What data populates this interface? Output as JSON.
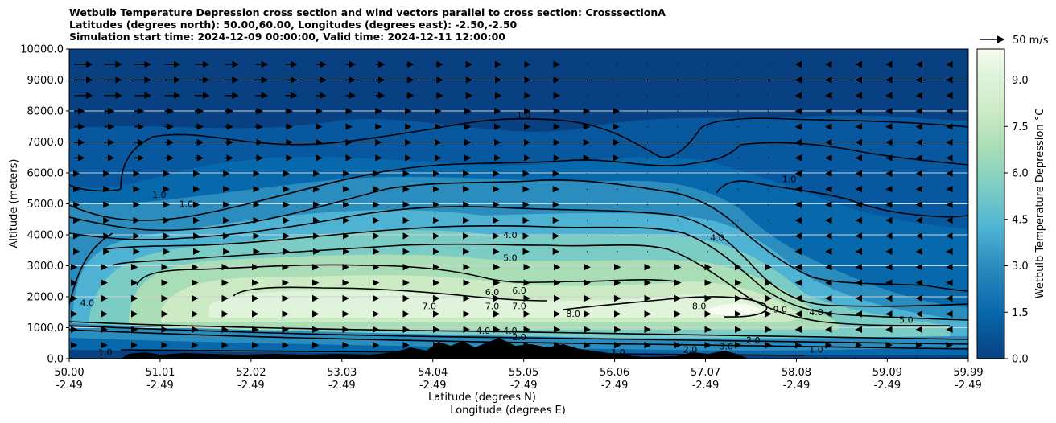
{
  "title_lines": [
    "Wetbulb Temperature Depression cross section and wind vectors parallel to cross section: CrosssectionA",
    "Latitudes (degrees north): 50.00,60.00, Longitudes (degrees east): -2.50,-2.50",
    "Simulation start time: 2024-12-09 00:00:00, Valid time: 2024-12-11 12:00:00"
  ],
  "chart_data": {
    "type": "heatmap",
    "title": "Wetbulb Temperature Depression cross section and wind vectors parallel to cross section: CrosssectionA",
    "ylabel": "Altitude (meters)",
    "xlabel": "Latitude (degrees N)",
    "xlabel2": "Longitude (degrees E)",
    "ylim": [
      0,
      10000
    ],
    "xlim": [
      50.0,
      59.99
    ],
    "yticks": [
      "0.0",
      "1000.0",
      "2000.0",
      "3000.0",
      "4000.0",
      "5000.0",
      "6000.0",
      "7000.0",
      "8000.0",
      "9000.0",
      "10000.0"
    ],
    "xticks_lat": [
      "50.00",
      "51.01",
      "52.02",
      "53.03",
      "54.04",
      "55.05",
      "56.06",
      "57.07",
      "58.08",
      "59.09",
      "59.99"
    ],
    "xticks_lon": [
      "-2.49",
      "-2.49",
      "-2.49",
      "-2.49",
      "-2.49",
      "-2.49",
      "-2.49",
      "-2.49",
      "-2.49",
      "-2.49",
      "-2.49"
    ],
    "colorbar": {
      "label": "Wetbulb Temperature Depression °C",
      "range": [
        0.0,
        10.0
      ],
      "ticks": [
        "0.0",
        "1.5",
        "3.0",
        "4.5",
        "6.0",
        "7.5",
        "9.0"
      ]
    },
    "quiver_key": "50 m/s",
    "contour_labels": [
      {
        "text": "1.0",
        "lat": 55.05,
        "alt": 7750
      },
      {
        "text": "1.0",
        "lat": 58.0,
        "alt": 5700
      },
      {
        "text": "1.0",
        "lat": 51.0,
        "alt": 5200
      },
      {
        "text": "1.0",
        "lat": 51.3,
        "alt": 4900
      },
      {
        "text": "4.0",
        "lat": 54.9,
        "alt": 3900
      },
      {
        "text": "4.0",
        "lat": 57.2,
        "alt": 3800
      },
      {
        "text": "5.0",
        "lat": 54.9,
        "alt": 3150
      },
      {
        "text": "6.0",
        "lat": 54.7,
        "alt": 2050
      },
      {
        "text": "6.0",
        "lat": 55.0,
        "alt": 2100
      },
      {
        "text": "7.0",
        "lat": 54.0,
        "alt": 1600
      },
      {
        "text": "7.0",
        "lat": 54.7,
        "alt": 1600
      },
      {
        "text": "7.0",
        "lat": 55.0,
        "alt": 1600
      },
      {
        "text": "8.0",
        "lat": 55.6,
        "alt": 1350
      },
      {
        "text": "8.0",
        "lat": 57.0,
        "alt": 1600
      },
      {
        "text": "9.0",
        "lat": 57.9,
        "alt": 1500
      },
      {
        "text": "5.0",
        "lat": 59.3,
        "alt": 1150
      },
      {
        "text": "4.0",
        "lat": 50.2,
        "alt": 1700
      },
      {
        "text": "4.0",
        "lat": 58.3,
        "alt": 1400
      },
      {
        "text": "4.0",
        "lat": 54.6,
        "alt": 800
      },
      {
        "text": "4.0",
        "lat": 54.9,
        "alt": 800
      },
      {
        "text": "2.0",
        "lat": 55.0,
        "alt": 600
      },
      {
        "text": "2.0",
        "lat": 56.9,
        "alt": 200
      },
      {
        "text": "2.0",
        "lat": 57.6,
        "alt": 500
      },
      {
        "text": "3.0",
        "lat": 57.3,
        "alt": 300
      },
      {
        "text": "1.0",
        "lat": 50.4,
        "alt": 100
      },
      {
        "text": "1.0",
        "lat": 56.1,
        "alt": 100
      },
      {
        "text": "1.0",
        "lat": 58.3,
        "alt": 200
      }
    ]
  }
}
